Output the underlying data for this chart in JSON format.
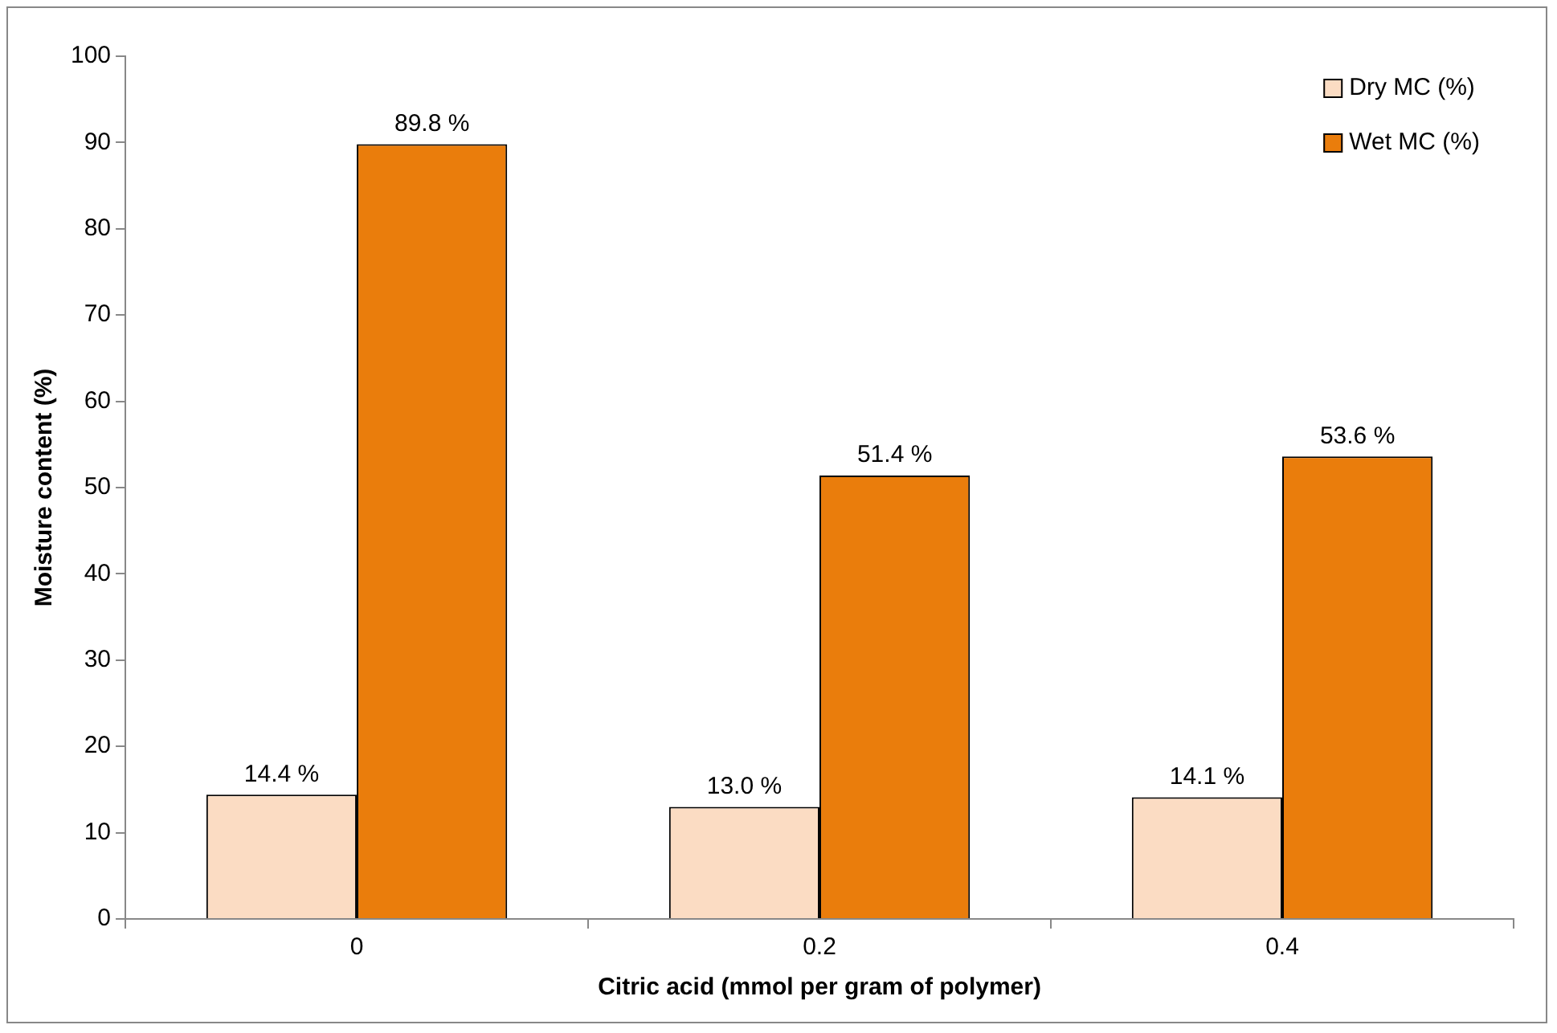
{
  "chart_data": {
    "type": "bar",
    "xlabel": "Citric acid (mmol per gram of polymer)",
    "ylabel": "Moisture content (%)",
    "categories": [
      "0",
      "0.2",
      "0.4"
    ],
    "series": [
      {
        "name": "Dry MC (%)",
        "color": "#fbdcc3",
        "values": [
          14.4,
          13.0,
          14.1
        ],
        "value_labels": [
          "14.4 %",
          "13.0 %",
          "14.1 %"
        ]
      },
      {
        "name": "Wet MC (%)",
        "color": "#ea7d0c",
        "values": [
          89.8,
          51.4,
          53.6
        ],
        "value_labels": [
          "89.8 %",
          "51.4 %",
          "53.6 %"
        ]
      }
    ],
    "ylim": [
      0,
      100
    ],
    "yticks": [
      0,
      10,
      20,
      30,
      40,
      50,
      60,
      70,
      80,
      90,
      100
    ],
    "grid": false,
    "legend": "top right"
  }
}
